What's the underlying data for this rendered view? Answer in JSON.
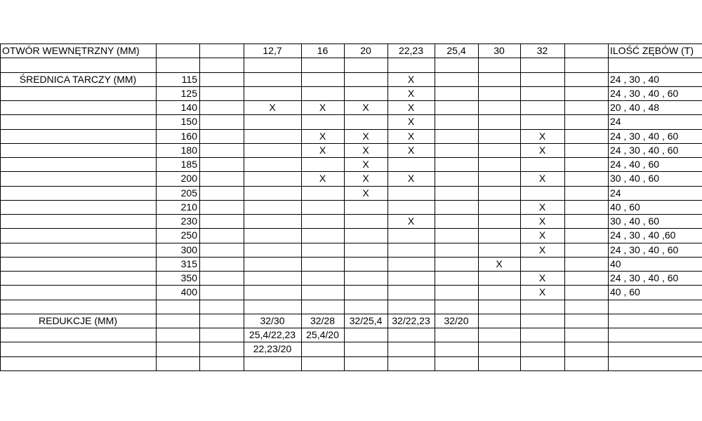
{
  "table": {
    "rows": [
      [
        "OTWÓR WEWNĘTRZNY (MM)",
        null,
        null,
        "12,7",
        "16",
        "20",
        "22,23",
        "25,4",
        "30",
        "32",
        null,
        "ILOŚĆ ZĘBÓW (T)"
      ],
      [
        null,
        null,
        null,
        null,
        null,
        null,
        null,
        null,
        null,
        null,
        null,
        null
      ],
      [
        "ŚREDNICA TARCZY (MM)",
        "115",
        null,
        null,
        null,
        null,
        "X",
        null,
        null,
        null,
        null,
        "24 , 30 , 40"
      ],
      [
        null,
        "125",
        null,
        null,
        null,
        null,
        "X",
        null,
        null,
        null,
        null,
        "24 , 30 , 40 , 60"
      ],
      [
        null,
        "140",
        null,
        "X",
        "X",
        "X",
        "X",
        null,
        null,
        null,
        null,
        "20 , 40 , 48"
      ],
      [
        null,
        "150",
        null,
        null,
        null,
        null,
        "X",
        null,
        null,
        null,
        null,
        "24"
      ],
      [
        null,
        "160",
        null,
        null,
        "X",
        "X",
        "X",
        null,
        null,
        "X",
        null,
        "24 , 30 , 40 , 60"
      ],
      [
        null,
        "180",
        null,
        null,
        "X",
        "X",
        "X",
        null,
        null,
        "X",
        null,
        "24 , 30 , 40 , 60"
      ],
      [
        null,
        "185",
        null,
        null,
        null,
        "X",
        null,
        null,
        null,
        null,
        null,
        "24 , 40 , 60"
      ],
      [
        null,
        "200",
        null,
        null,
        "X",
        "X",
        "X",
        null,
        null,
        "X",
        null,
        "30 , 40 , 60"
      ],
      [
        null,
        "205",
        null,
        null,
        null,
        "X",
        null,
        null,
        null,
        null,
        null,
        "24"
      ],
      [
        null,
        "210",
        null,
        null,
        null,
        null,
        null,
        null,
        null,
        "X",
        null,
        "40 , 60"
      ],
      [
        null,
        "230",
        null,
        null,
        null,
        null,
        "X",
        null,
        null,
        "X",
        null,
        "30 , 40 , 60"
      ],
      [
        null,
        "250",
        null,
        null,
        null,
        null,
        null,
        null,
        null,
        "X",
        null,
        "24 , 30 , 40 ,60"
      ],
      [
        null,
        "300",
        null,
        null,
        null,
        null,
        null,
        null,
        null,
        "X",
        null,
        "24 , 30 , 40 , 60"
      ],
      [
        null,
        "315",
        null,
        null,
        null,
        null,
        null,
        null,
        "X",
        null,
        null,
        "40"
      ],
      [
        null,
        "350",
        null,
        null,
        null,
        null,
        null,
        null,
        null,
        "X",
        null,
        "24 , 30 , 40 , 60"
      ],
      [
        null,
        "400",
        null,
        null,
        null,
        null,
        null,
        null,
        null,
        "X",
        null,
        "40 , 60"
      ],
      [
        null,
        null,
        null,
        null,
        null,
        null,
        null,
        null,
        null,
        null,
        null,
        null
      ],
      [
        "REDUKCJE (MM)",
        null,
        null,
        "32/30",
        "32/28",
        "32/25,4",
        "32/22,23",
        "32/20",
        null,
        null,
        null,
        null
      ],
      [
        null,
        null,
        null,
        "25,4/22,23",
        "25,4/20",
        null,
        null,
        null,
        null,
        null,
        null,
        null
      ],
      [
        null,
        null,
        null,
        "22,23/20",
        null,
        null,
        null,
        null,
        null,
        null,
        null,
        null
      ],
      [
        null,
        null,
        null,
        null,
        null,
        null,
        null,
        null,
        null,
        null,
        null,
        null
      ]
    ]
  }
}
